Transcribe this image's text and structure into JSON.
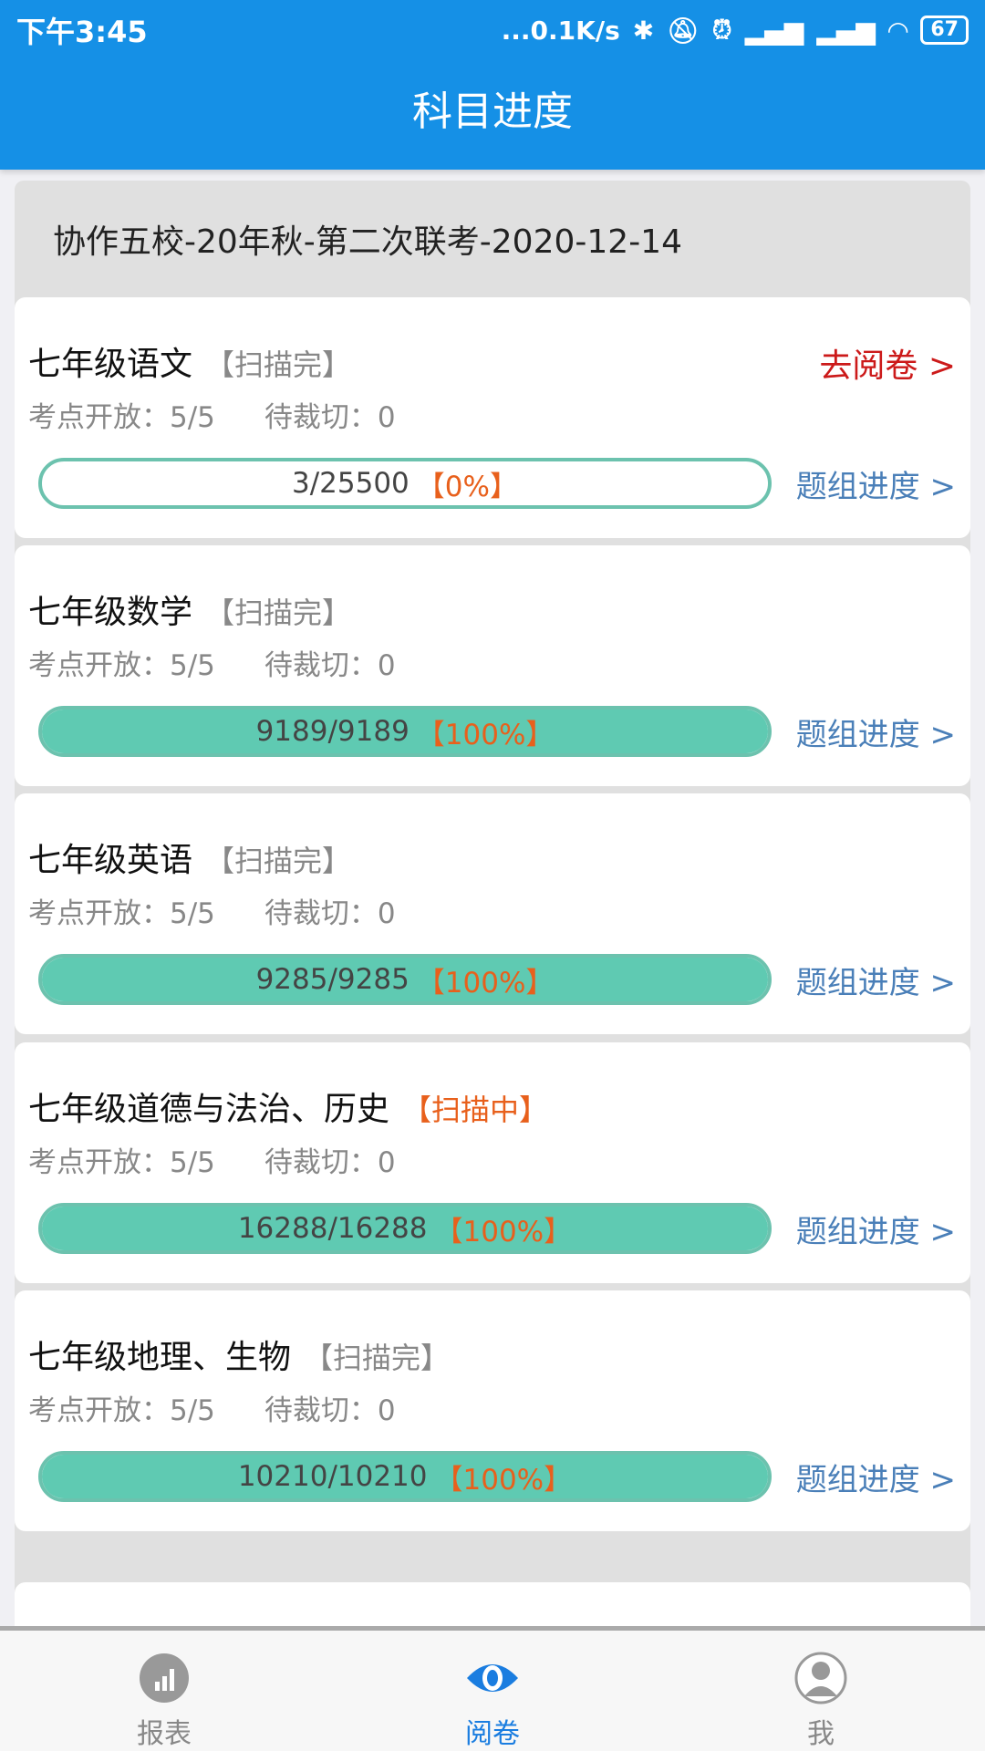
{
  "status_bar": {
    "time": "下午3:45",
    "network_speed": "...0.1K/s",
    "battery": "67"
  },
  "header": {
    "title": "科目进度"
  },
  "exam_title": "协作五校-20年秋-第二次联考-2020-12-14",
  "labels": {
    "open": "考点开放：",
    "pending_cut": "待裁切：",
    "goto_review": "去阅卷 >",
    "group_progress": "题组进度 >"
  },
  "subjects": [
    {
      "name": "七年级语文",
      "status": "【扫描完】",
      "status_color": "#888888",
      "open": "5/5",
      "pending": "0",
      "progress_text": "3/25500",
      "percent_text": "【0%】",
      "percent": 0,
      "show_goto": true
    },
    {
      "name": "七年级数学",
      "status": "【扫描完】",
      "status_color": "#888888",
      "open": "5/5",
      "pending": "0",
      "progress_text": "9189/9189",
      "percent_text": "【100%】",
      "percent": 100
    },
    {
      "name": "七年级英语",
      "status": "【扫描完】",
      "status_color": "#888888",
      "open": "5/5",
      "pending": "0",
      "progress_text": "9285/9285",
      "percent_text": "【100%】",
      "percent": 100
    },
    {
      "name": "七年级道德与法治、历史",
      "status": "【扫描中】",
      "status_color": "#e8601c",
      "open": "5/5",
      "pending": "0",
      "progress_text": "16288/16288",
      "percent_text": "【100%】",
      "percent": 100
    },
    {
      "name": "七年级地理、生物",
      "status": "【扫描完】",
      "status_color": "#888888",
      "open": "5/5",
      "pending": "0",
      "progress_text": "10210/10210",
      "percent_text": "【100%】",
      "percent": 100
    }
  ],
  "nav": {
    "items": [
      {
        "label": "报表",
        "icon": "chart-icon"
      },
      {
        "label": "阅卷",
        "icon": "eye-icon",
        "active": true
      },
      {
        "label": "我",
        "icon": "user-icon"
      }
    ]
  },
  "colors": {
    "primary": "#1590e6",
    "progress": "#5fcab2",
    "goto": "#cc1a1a",
    "link": "#4a7fb8"
  }
}
